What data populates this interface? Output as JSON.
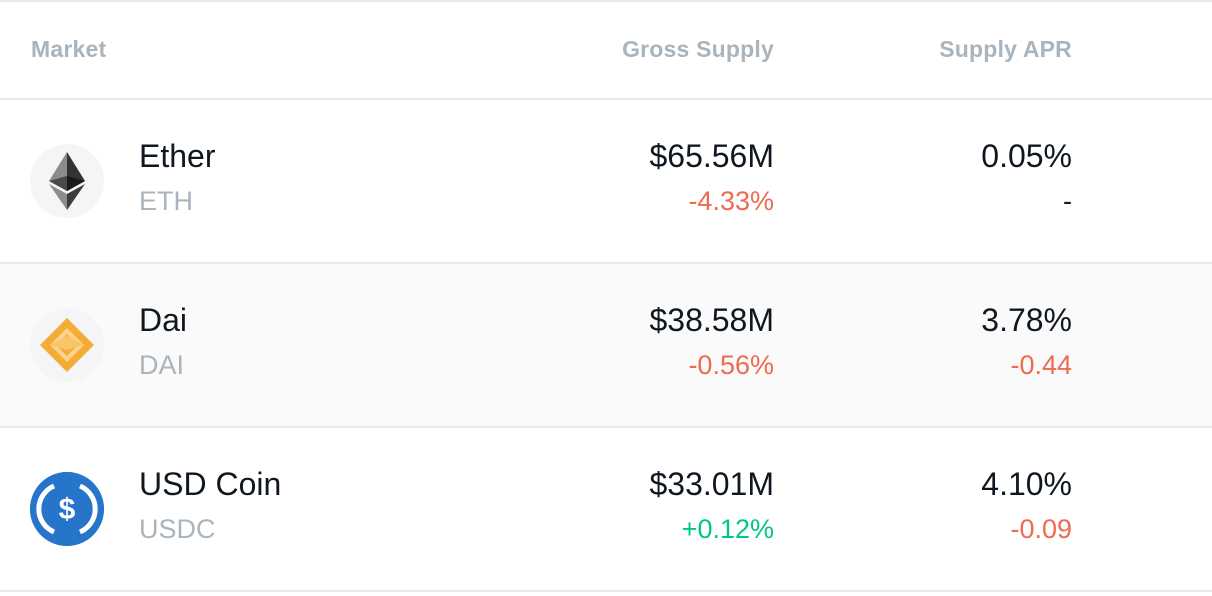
{
  "header": {
    "market": "Market",
    "gross_supply": "Gross Supply",
    "supply_apr": "Supply APR"
  },
  "rows": [
    {
      "name": "Ether",
      "symbol": "ETH",
      "icon": "ether-icon",
      "gross_supply": "$65.56M",
      "gross_supply_change": "-4.33%",
      "supply_apr": "0.05%",
      "supply_apr_change": "-"
    },
    {
      "name": "Dai",
      "symbol": "DAI",
      "icon": "dai-icon",
      "gross_supply": "$38.58M",
      "gross_supply_change": "-0.56%",
      "supply_apr": "3.78%",
      "supply_apr_change": "-0.44"
    },
    {
      "name": "USD Coin",
      "symbol": "USDC",
      "icon": "usdc-icon",
      "gross_supply": "$33.01M",
      "gross_supply_change": "+0.12%",
      "supply_apr": "4.10%",
      "supply_apr_change": "-0.09"
    }
  ],
  "colors": {
    "negative": "#ee6a50",
    "positive": "#00c883",
    "muted": "#a9b4bc",
    "usdc_blue": "#2775ca",
    "dai_gold": "#f5ac37"
  }
}
